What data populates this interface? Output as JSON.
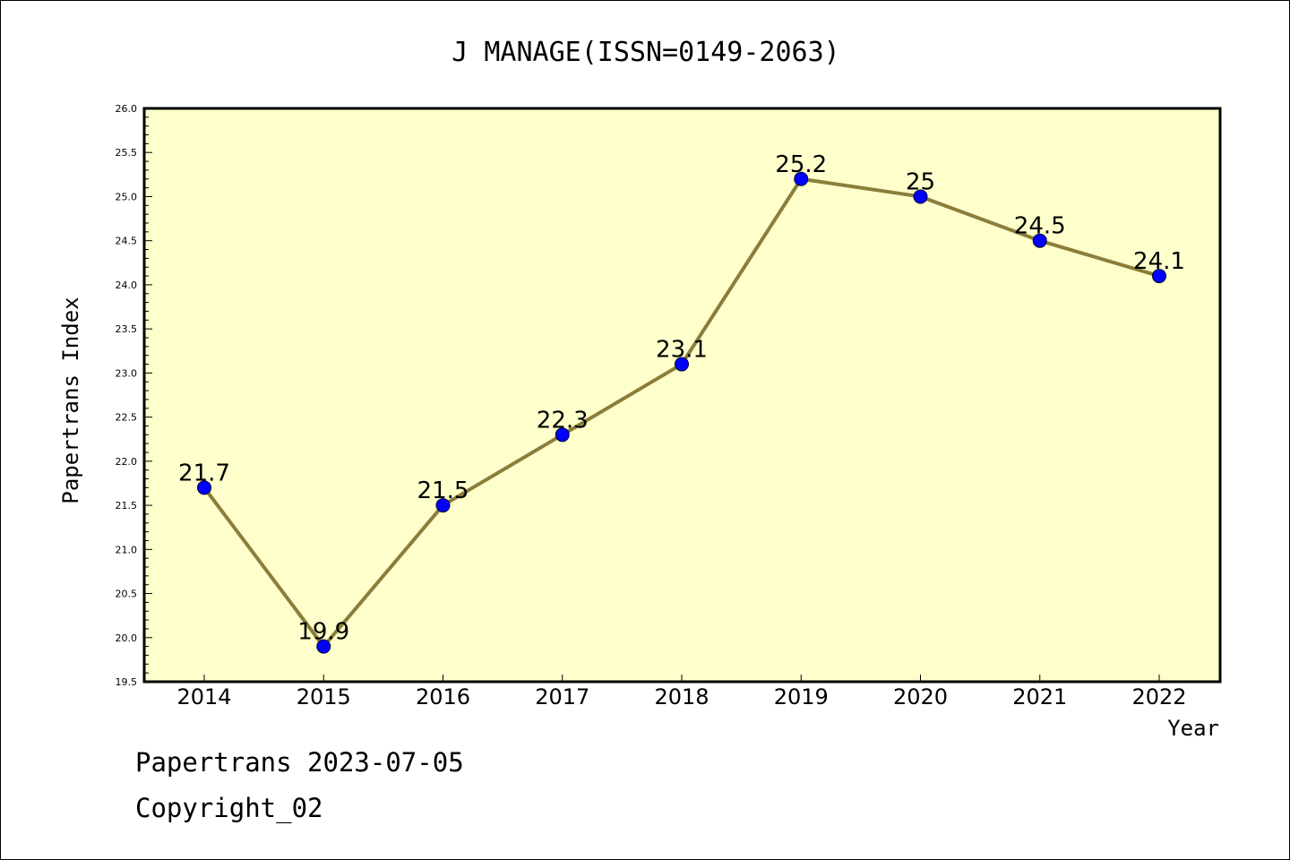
{
  "chart_data": {
    "type": "line",
    "title": "J MANAGE(ISSN=0149-2063)",
    "xlabel": "Year",
    "ylabel": "Papertrans Index",
    "categories": [
      "2014",
      "2015",
      "2016",
      "2017",
      "2018",
      "2019",
      "2020",
      "2021",
      "2022"
    ],
    "series": [
      {
        "values": [
          21.7,
          19.9,
          21.5,
          22.3,
          23.1,
          25.2,
          25.0,
          24.5,
          24.1
        ],
        "labels": [
          "21.7",
          "19.9",
          "21.5",
          "22.3",
          "23.1",
          "25.2",
          "25",
          "24.5",
          "24.1"
        ]
      }
    ],
    "ylim": [
      19.5,
      26.0
    ],
    "yticks": [
      "19.5",
      "20.0",
      "20.5",
      "21.0",
      "21.5",
      "22.0",
      "22.5",
      "23.0",
      "23.5",
      "24.0",
      "24.5",
      "25.0",
      "25.5",
      "26.0"
    ],
    "grid": false,
    "colors": {
      "plot_background": "#ffffcc",
      "line": "#8b7d3a",
      "marker": "#0000ff"
    }
  },
  "footer": {
    "source": "Papertrans 2023-07-05",
    "copyright": "Copyright_02"
  }
}
